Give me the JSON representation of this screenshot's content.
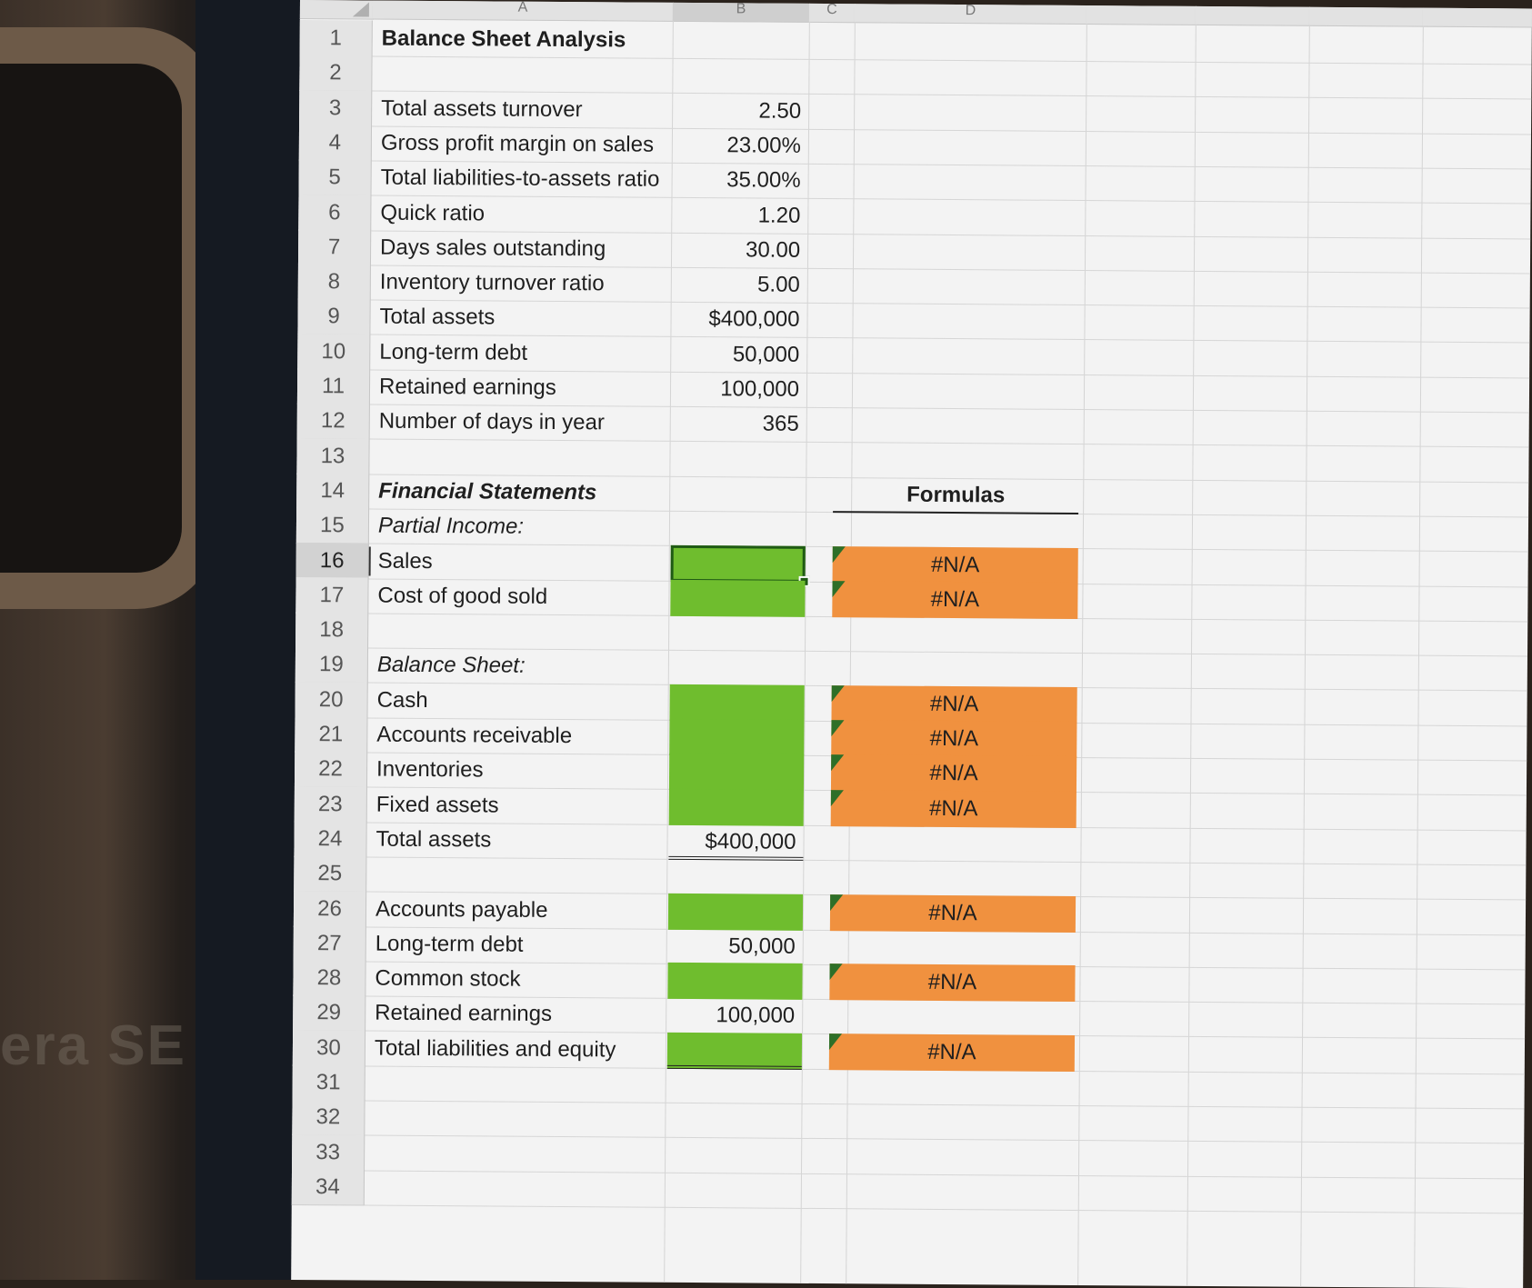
{
  "column_headers": [
    "A",
    "B",
    "C",
    "D"
  ],
  "rows": [
    {
      "n": "1",
      "a": "Balance Sheet Analysis",
      "a_style": "bold"
    },
    {
      "n": "2"
    },
    {
      "n": "3",
      "a": "Total assets turnover",
      "b": "2.50"
    },
    {
      "n": "4",
      "a": "Gross profit margin on sales",
      "b": "23.00%"
    },
    {
      "n": "5",
      "a": "Total liabilities-to-assets ratio",
      "b": "35.00%"
    },
    {
      "n": "6",
      "a": "Quick ratio",
      "b": "1.20"
    },
    {
      "n": "7",
      "a": "Days sales outstanding",
      "b": "30.00"
    },
    {
      "n": "8",
      "a": "Inventory turnover ratio",
      "b": "5.00"
    },
    {
      "n": "9",
      "a": "Total assets",
      "b": "$400,000"
    },
    {
      "n": "10",
      "a": "Long-term debt",
      "b": "50,000"
    },
    {
      "n": "11",
      "a": "Retained earnings",
      "b": "100,000"
    },
    {
      "n": "12",
      "a": "Number of days in year",
      "b": "365"
    },
    {
      "n": "13"
    },
    {
      "n": "14",
      "a": "Financial Statements",
      "a_style": "bold-italic",
      "d": "Formulas",
      "d_style": "header"
    },
    {
      "n": "15",
      "a": "Partial Income:",
      "a_style": "italic"
    },
    {
      "n": "16",
      "a": "Sales",
      "b_fill": "green",
      "b_selected": true,
      "d": "#N/A",
      "d_fill": "orange",
      "selected_row": true
    },
    {
      "n": "17",
      "a": "Cost of good sold",
      "b_fill": "green",
      "d": "#N/A",
      "d_fill": "orange"
    },
    {
      "n": "18"
    },
    {
      "n": "19",
      "a": "Balance Sheet:",
      "a_style": "italic"
    },
    {
      "n": "20",
      "a": "Cash",
      "b_fill": "green",
      "d": "#N/A",
      "d_fill": "orange"
    },
    {
      "n": "21",
      "a": "Accounts receivable",
      "b_fill": "green",
      "d": "#N/A",
      "d_fill": "orange"
    },
    {
      "n": "22",
      "a": "Inventories",
      "b_fill": "green",
      "d": "#N/A",
      "d_fill": "orange"
    },
    {
      "n": "23",
      "a": "Fixed assets",
      "b_fill": "green",
      "d": "#N/A",
      "d_fill": "orange"
    },
    {
      "n": "24",
      "a": "Total assets",
      "b": "$400,000",
      "b_border": "double"
    },
    {
      "n": "25"
    },
    {
      "n": "26",
      "a": "Accounts payable",
      "b_fill": "green",
      "d": "#N/A",
      "d_fill": "orange"
    },
    {
      "n": "27",
      "a": "Long-term debt",
      "b": "50,000"
    },
    {
      "n": "28",
      "a": "Common stock",
      "b_fill": "green",
      "d": "#N/A",
      "d_fill": "orange"
    },
    {
      "n": "29",
      "a": "Retained earnings",
      "b": "100,000"
    },
    {
      "n": "30",
      "a": "Total liabilities and equity",
      "b_fill": "green",
      "b_border": "double",
      "d": "#N/A",
      "d_fill": "orange"
    },
    {
      "n": "31"
    },
    {
      "n": "32"
    },
    {
      "n": "33"
    },
    {
      "n": "34"
    }
  ],
  "colors": {
    "green": "#6fbd2e",
    "orange": "#f0913f",
    "selection": "#1f5a14"
  },
  "bezel_text": "era SE"
}
